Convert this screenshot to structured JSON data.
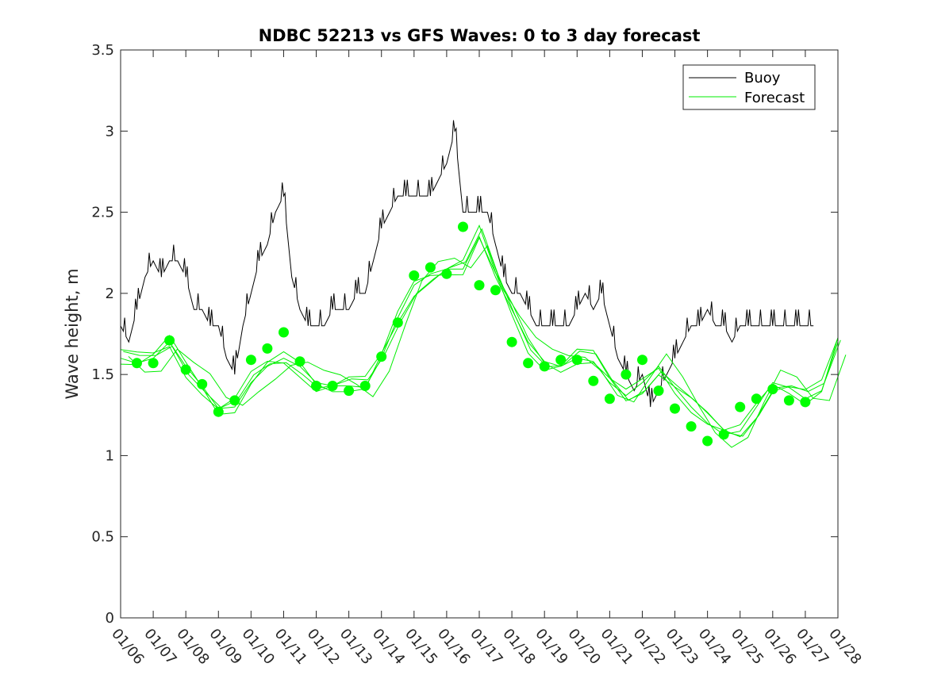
{
  "chart_data": {
    "type": "line",
    "title": "NDBC 52213 vs GFS Waves: 0 to 3 day forecast",
    "xlabel": "",
    "ylabel": "Wave height, m",
    "ylim": [
      0,
      3.5
    ],
    "xlim_days": [
      0,
      22
    ],
    "yticks": [
      0,
      0.5,
      1,
      1.5,
      2,
      2.5,
      3,
      3.5
    ],
    "ytick_labels": [
      "0",
      "0.5",
      "1",
      "1.5",
      "2",
      "2.5",
      "3",
      "3.5"
    ],
    "xtick_labels": [
      "01/06",
      "01/07",
      "01/08",
      "01/09",
      "01/10",
      "01/11",
      "01/12",
      "01/13",
      "01/14",
      "01/15",
      "01/16",
      "01/17",
      "01/18",
      "01/19",
      "01/20",
      "01/21",
      "01/22",
      "01/23",
      "01/24",
      "01/25",
      "01/26",
      "01/27",
      "01/28"
    ],
    "legend": {
      "position": "top-right",
      "entries": [
        "Buoy",
        "Forecast"
      ]
    },
    "colors": {
      "buoy": "#000000",
      "forecast": "#00ee00",
      "markers": "#00ff00"
    },
    "series": [
      {
        "name": "Buoy",
        "x_days": [
          0,
          0.25,
          0.5,
          0.75,
          1,
          1.25,
          1.5,
          1.75,
          2,
          2.25,
          2.5,
          2.75,
          3,
          3.25,
          3.5,
          3.75,
          4,
          4.25,
          4.5,
          4.75,
          5,
          5.25,
          5.5,
          5.75,
          6,
          6.25,
          6.5,
          6.75,
          7,
          7.25,
          7.5,
          7.75,
          8,
          8.25,
          8.5,
          8.75,
          9,
          9.25,
          9.5,
          9.75,
          10,
          10.25,
          10.5,
          10.75,
          11,
          11.25,
          11.5,
          11.75,
          12,
          12.25,
          12.5,
          12.75,
          13,
          13.25,
          13.5,
          13.75,
          14,
          14.25,
          14.5,
          14.75,
          15,
          15.25,
          15.5,
          15.75,
          16,
          16.25,
          16.5,
          16.75,
          17,
          17.25,
          17.5,
          17.75,
          18,
          18.25,
          18.5,
          18.75,
          19,
          19.25,
          19.5,
          19.75,
          20,
          20.25,
          20.5,
          20.75,
          21,
          21.25
        ],
        "values": [
          1.8,
          1.7,
          1.9,
          2.1,
          2.2,
          2.1,
          2.2,
          2.2,
          2.1,
          1.9,
          1.9,
          1.8,
          1.8,
          1.6,
          1.5,
          1.8,
          2.0,
          2.2,
          2.3,
          2.5,
          2.6,
          2.1,
          1.9,
          1.8,
          1.8,
          1.8,
          1.9,
          1.9,
          1.9,
          2.0,
          2.0,
          2.2,
          2.4,
          2.5,
          2.6,
          2.6,
          2.6,
          2.6,
          2.6,
          2.7,
          2.8,
          3.0,
          2.5,
          2.5,
          2.5,
          2.5,
          2.3,
          2.1,
          2.0,
          2.0,
          1.9,
          1.8,
          1.8,
          1.8,
          1.8,
          1.8,
          1.9,
          2.0,
          1.9,
          2.0,
          1.8,
          1.6,
          1.5,
          1.4,
          1.5,
          1.3,
          1.4,
          1.5,
          1.6,
          1.7,
          1.8,
          1.8,
          1.9,
          1.8,
          1.8,
          1.7,
          1.8,
          1.8,
          1.8,
          1.8,
          1.8,
          1.8,
          1.8,
          1.8,
          1.8,
          1.8
        ]
      },
      {
        "name": "Forecast",
        "x_days": [
          0,
          0.5,
          1,
          1.5,
          2,
          2.5,
          3,
          3.5,
          4,
          4.5,
          5,
          5.5,
          6,
          6.5,
          7,
          7.5,
          8,
          8.5,
          9,
          9.5,
          10,
          10.5,
          11,
          11.5,
          12,
          12.5,
          13,
          13.5,
          14,
          14.5,
          15,
          15.5,
          16,
          16.5,
          17,
          17.5,
          18,
          18.5,
          19,
          19.5,
          20,
          20.5,
          21,
          21.5,
          22
        ],
        "values": [
          1.6,
          1.57,
          1.6,
          1.7,
          1.55,
          1.43,
          1.29,
          1.3,
          1.45,
          1.55,
          1.6,
          1.55,
          1.45,
          1.43,
          1.43,
          1.42,
          1.6,
          1.85,
          2.05,
          2.12,
          2.15,
          2.15,
          2.35,
          2.1,
          1.9,
          1.7,
          1.58,
          1.55,
          1.6,
          1.58,
          1.45,
          1.37,
          1.45,
          1.55,
          1.42,
          1.3,
          1.2,
          1.13,
          1.15,
          1.3,
          1.45,
          1.42,
          1.35,
          1.4,
          1.7
        ]
      }
    ],
    "forecast_markers": {
      "x_days": [
        0.5,
        1,
        1.5,
        2,
        2.5,
        3,
        3.5,
        4,
        4.5,
        5,
        5.5,
        6,
        6.5,
        7,
        7.5,
        8,
        8.5,
        9,
        9.5,
        10,
        10.5,
        11,
        11.5,
        12,
        12.5,
        13,
        13.5,
        14,
        14.5,
        15,
        15.5,
        16,
        16.5,
        17,
        17.5,
        18,
        18.5,
        19,
        19.5,
        20,
        20.5,
        21
      ],
      "values": [
        1.57,
        1.57,
        1.71,
        1.53,
        1.44,
        1.27,
        1.34,
        1.59,
        1.66,
        1.76,
        1.58,
        1.43,
        1.43,
        1.4,
        1.43,
        1.61,
        1.82,
        2.11,
        2.16,
        2.12,
        2.41,
        2.05,
        2.02,
        1.7,
        1.57,
        1.55,
        1.59,
        1.59,
        1.46,
        1.35,
        1.5,
        1.59,
        1.4,
        1.29,
        1.18,
        1.09,
        1.13,
        1.3,
        1.35,
        1.41,
        1.34,
        1.33
      ]
    }
  }
}
